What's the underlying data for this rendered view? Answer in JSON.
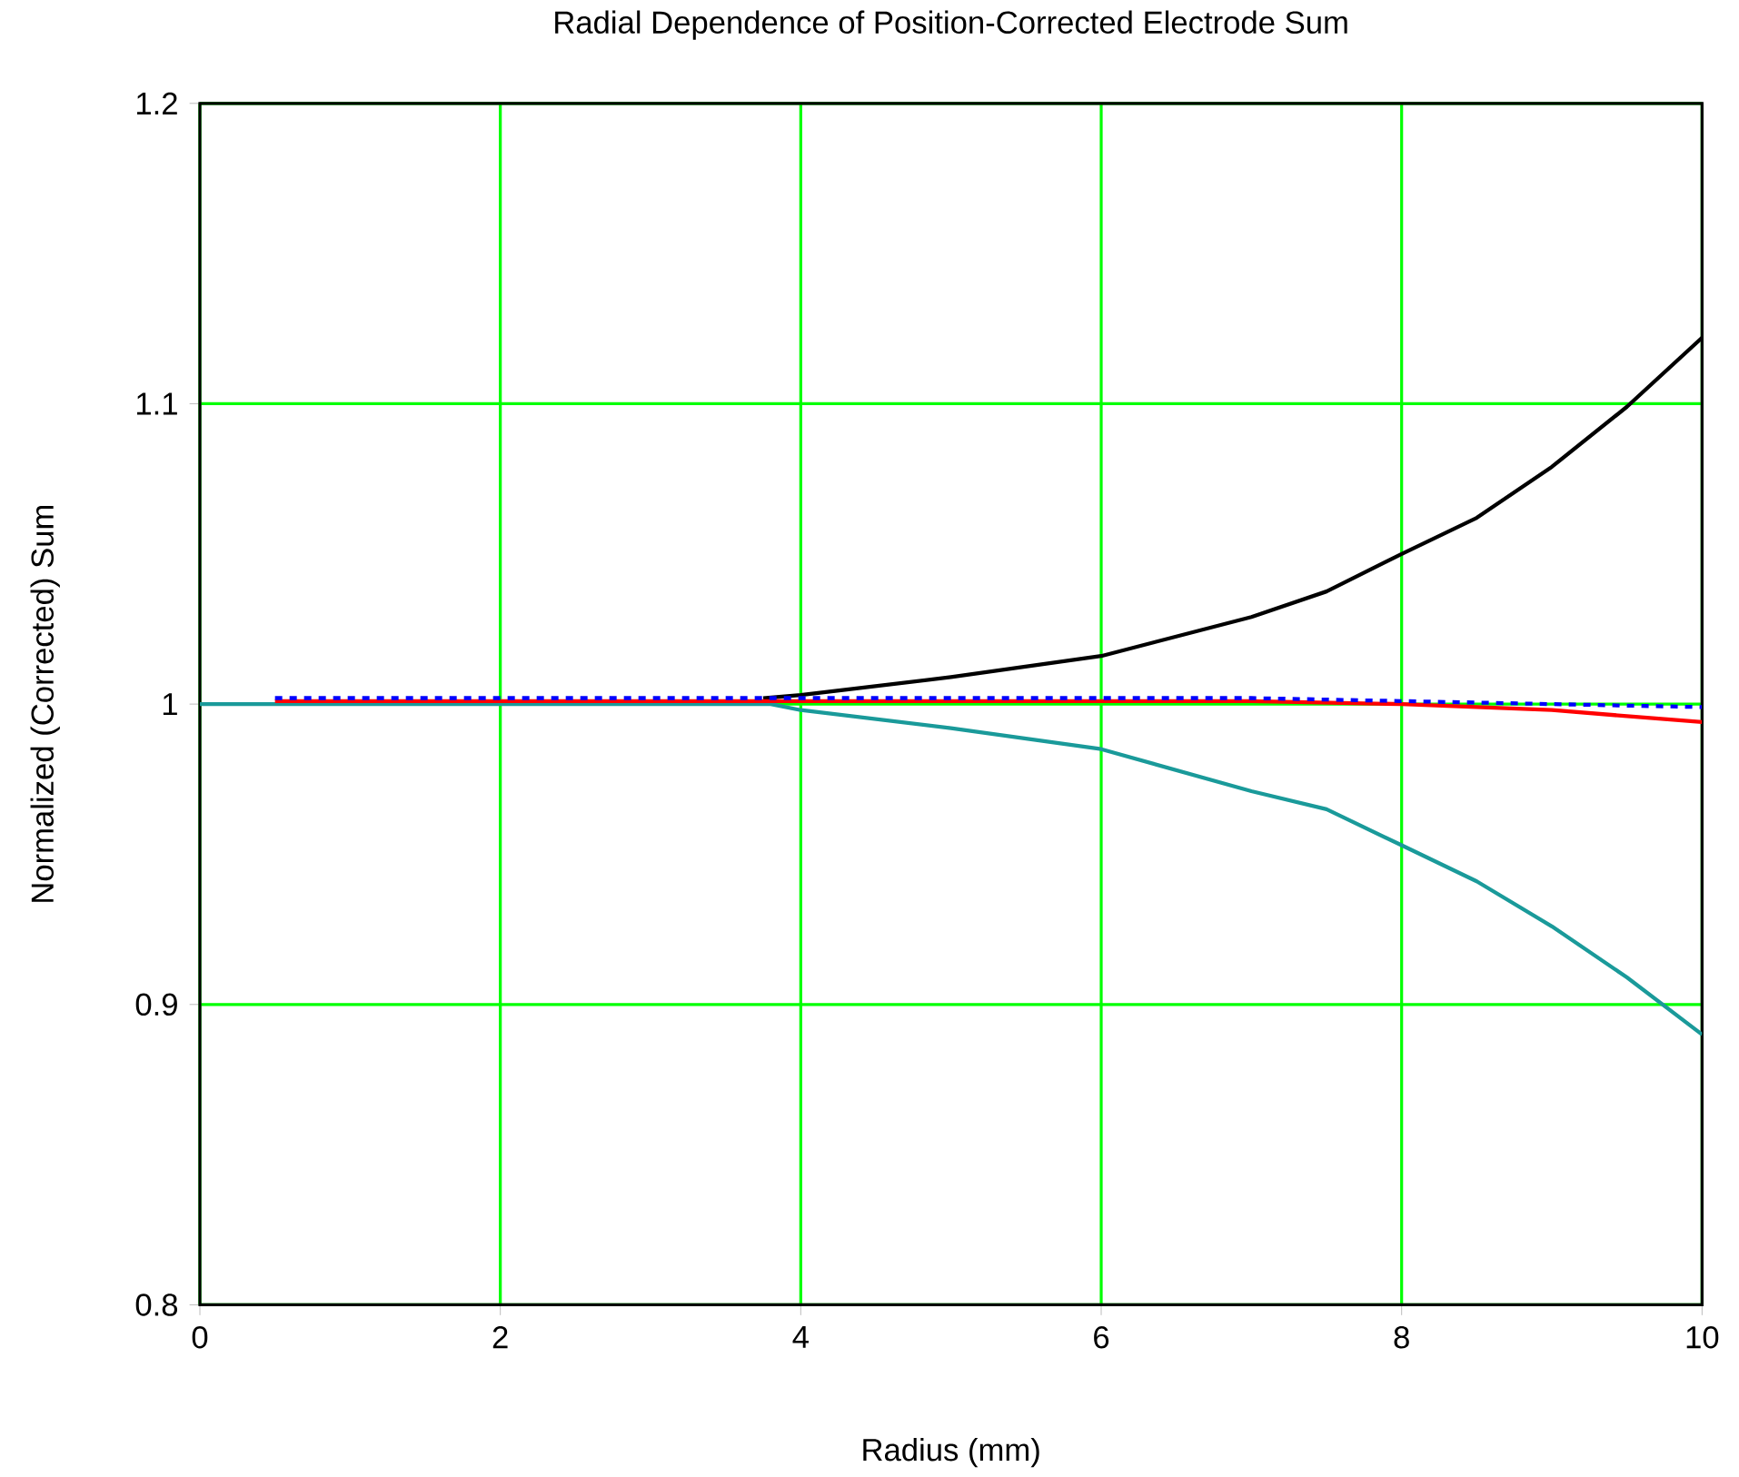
{
  "chart_data": {
    "type": "line",
    "title": "Radial Dependence of Position-Corrected Electrode Sum",
    "xlabel": "Radius (mm)",
    "ylabel": "Normalized (Corrected) Sum",
    "xlim": [
      0,
      10
    ],
    "ylim": [
      0.8,
      1.2
    ],
    "xticks": [
      0,
      2,
      4,
      6,
      8,
      10
    ],
    "yticks": [
      0.8,
      0.9,
      1,
      1.1,
      1.2
    ],
    "grid": true,
    "marker": "none",
    "series": [
      {
        "color": "#000000",
        "line_style": "solid",
        "x": [
          3.75,
          4,
          5,
          6,
          7,
          7.5,
          8,
          8.5,
          9,
          9.5,
          10
        ],
        "values": [
          1.002,
          1.003,
          1.009,
          1.016,
          1.029,
          1.0375,
          1.05,
          1.062,
          1.079,
          1.099,
          1.122
        ]
      },
      {
        "color": "#1a9a9a",
        "line_style": "solid",
        "x": [
          0,
          3.8,
          4,
          5,
          6,
          7,
          7.5,
          8,
          8.5,
          9,
          9.5,
          10
        ],
        "values": [
          1.0,
          1.0,
          0.998,
          0.992,
          0.985,
          0.971,
          0.965,
          0.953,
          0.941,
          0.926,
          0.909,
          0.89
        ]
      },
      {
        "color": "#ff0000",
        "line_style": "solid",
        "x": [
          0.5,
          7,
          8,
          8.5,
          9,
          9.5,
          10
        ],
        "values": [
          1.001,
          1.001,
          1.0,
          0.999,
          0.998,
          0.996,
          0.994
        ]
      },
      {
        "color": "#0000ff",
        "line_style": "dashed",
        "x": [
          0.5,
          7,
          8,
          9,
          10
        ],
        "values": [
          1.002,
          1.002,
          1.001,
          1.0,
          0.999
        ]
      }
    ]
  }
}
